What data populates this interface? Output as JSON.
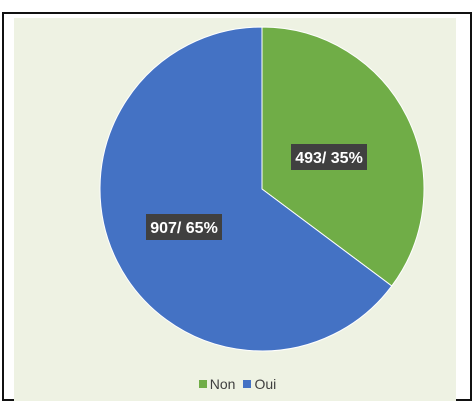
{
  "chart_data": {
    "type": "pie",
    "categories": [
      "Non",
      "Oui"
    ],
    "values": [
      493,
      907
    ],
    "labels": [
      "493/ 35%",
      "907/ 65%"
    ],
    "colors": [
      "#70ad47",
      "#4472c4"
    ],
    "legend": {
      "position": "bottom",
      "items": [
        {
          "label": "Non",
          "color": "#70ad47"
        },
        {
          "label": "Oui",
          "color": "#4472c4"
        }
      ]
    },
    "title": ""
  },
  "colors": {
    "plot_background": "#eef2e3",
    "label_background": "#404040"
  }
}
